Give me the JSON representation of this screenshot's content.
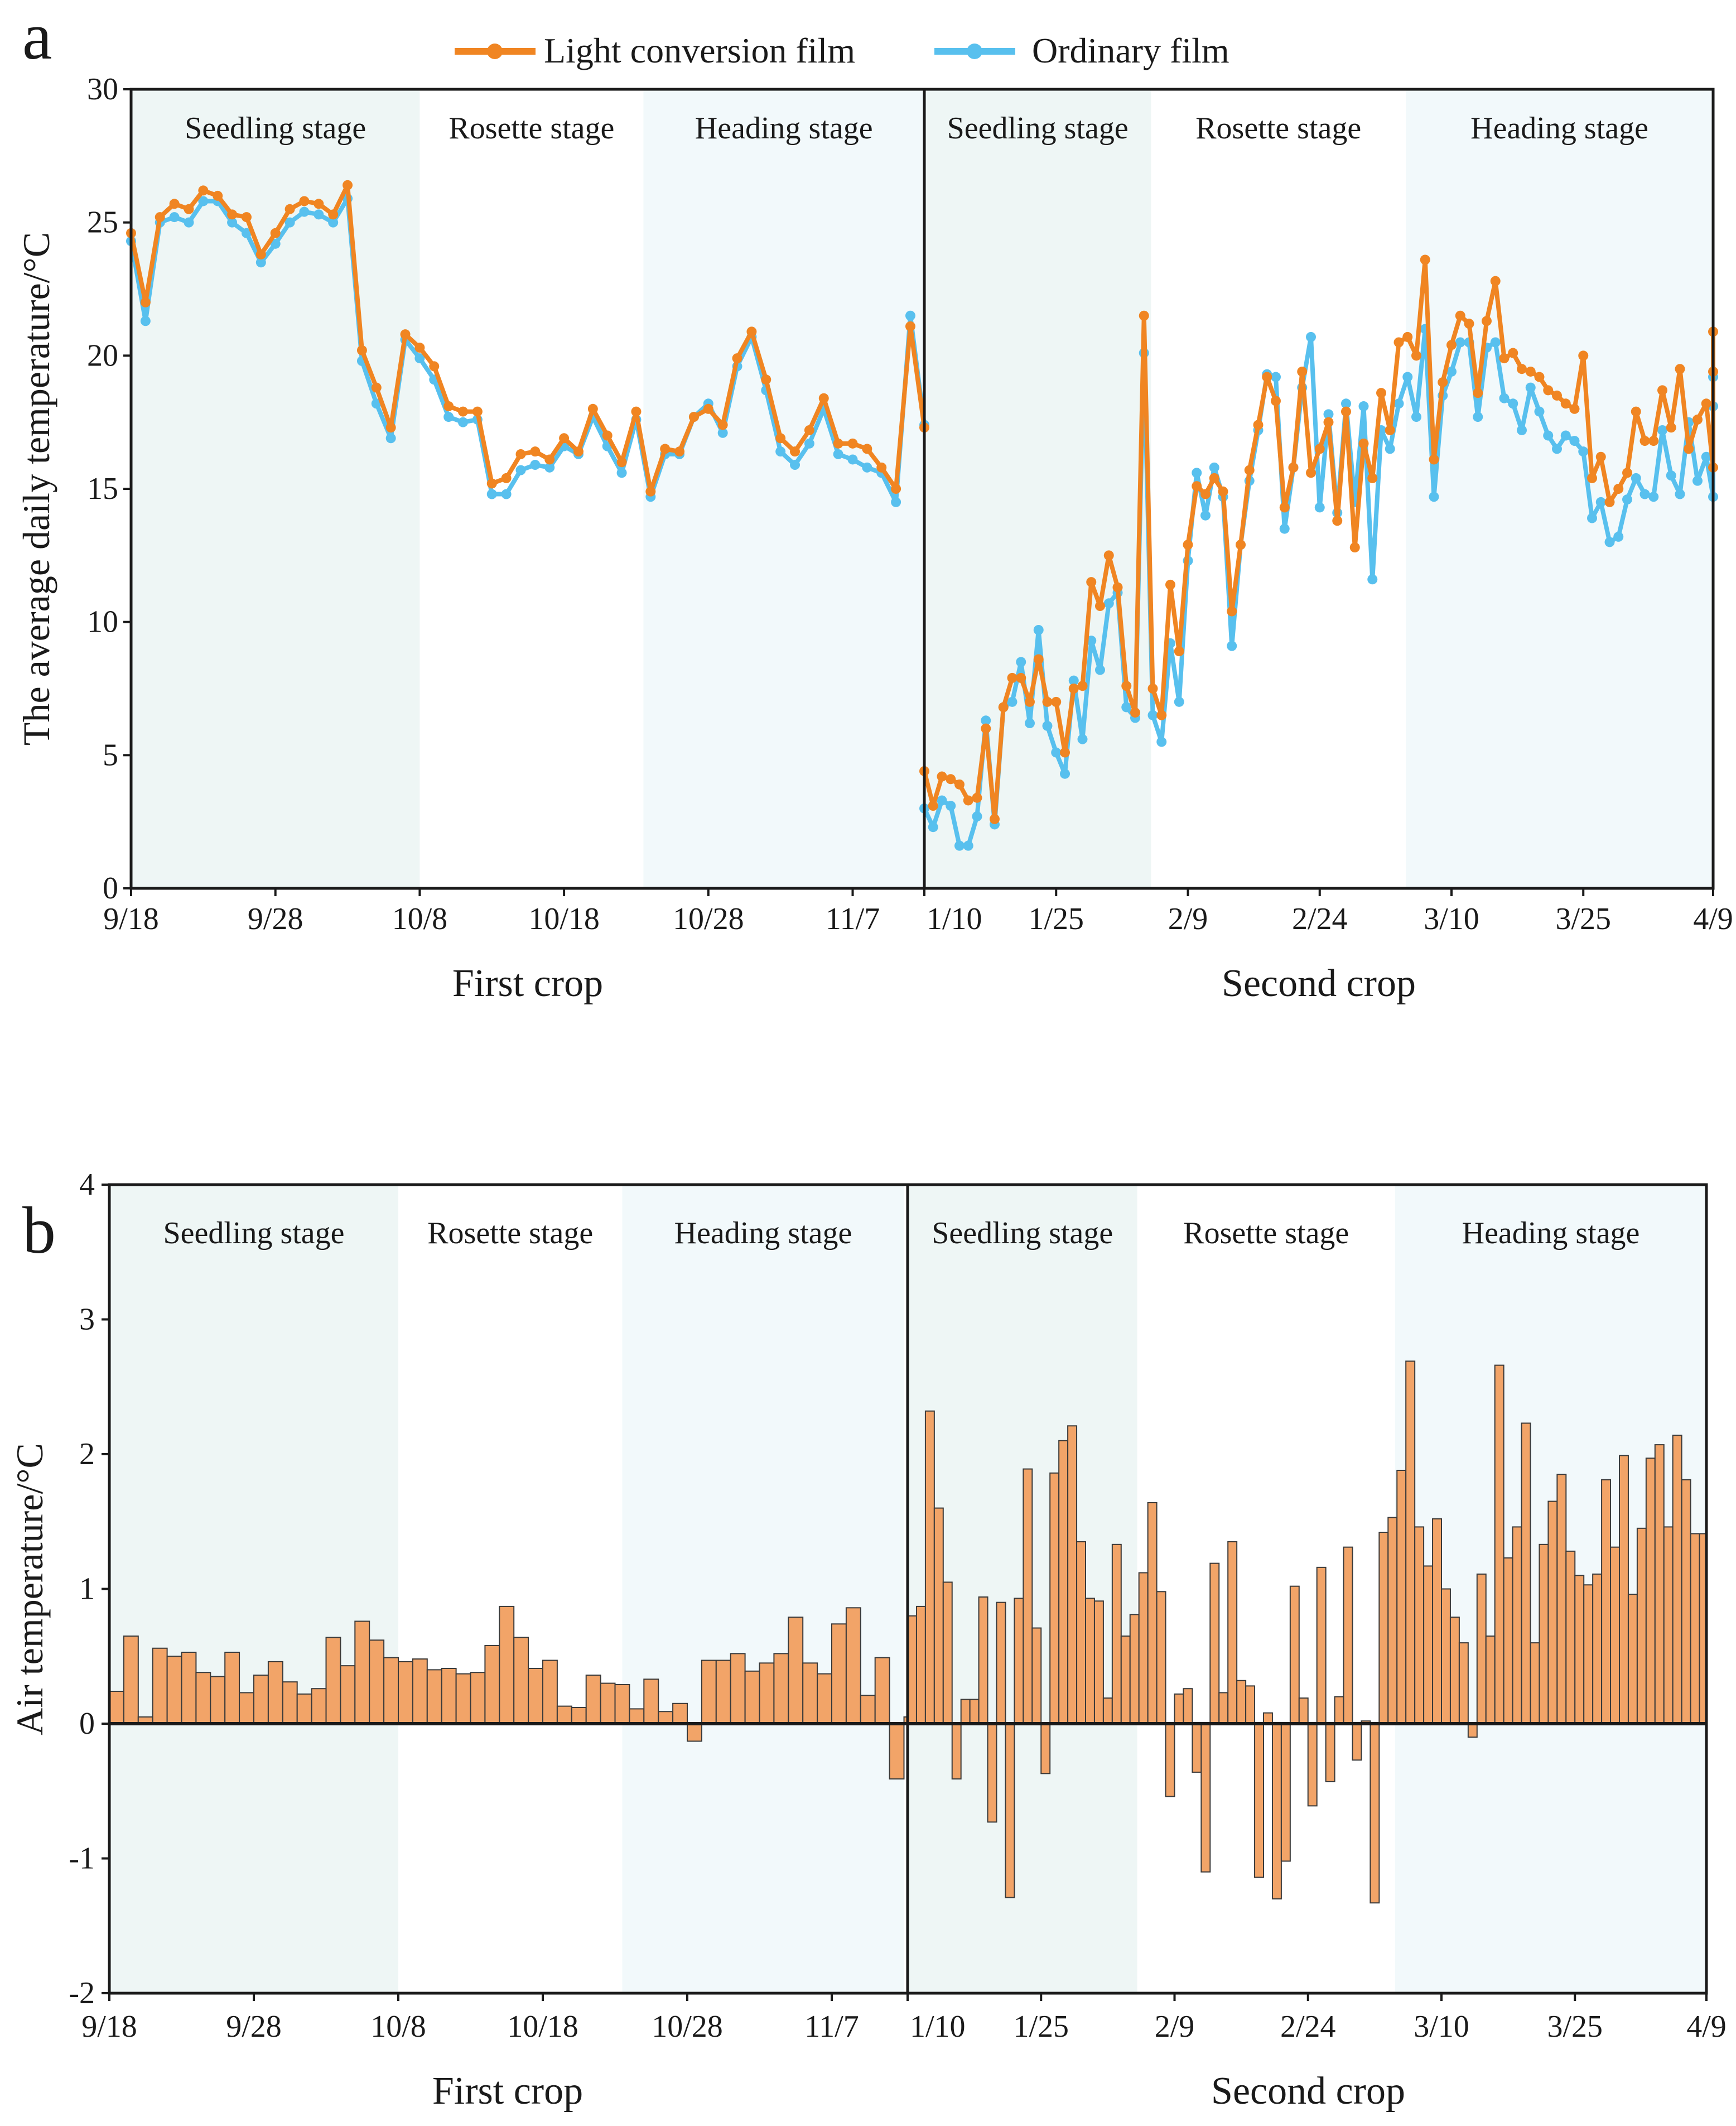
{
  "colors": {
    "lcf": "#F08522",
    "ordinary": "#58C0EE",
    "bar_fill": "#F2A468",
    "bar_edge": "#3a3a3a",
    "seedling_shade": "#EEF6F5",
    "heading_shade": "#F2F9FB",
    "axis": "#1a1a1a"
  },
  "chart_data": [
    {
      "panel_label": "a",
      "type": "line",
      "ylabel": "The average daily temperature/°C",
      "ylim": [
        0,
        30
      ],
      "yticks": [
        "0",
        "5",
        "10",
        "15",
        "20",
        "25",
        "30"
      ],
      "grid": false,
      "legend_position": "top-center",
      "legend": [
        "Light conversion film",
        "Ordinary film"
      ],
      "crops": [
        {
          "name": "First crop",
          "day_count": 55,
          "xticks": [
            {
              "day": 0,
              "label": "9/18"
            },
            {
              "day": 10,
              "label": "9/28"
            },
            {
              "day": 20,
              "label": "10/8"
            },
            {
              "day": 30,
              "label": "10/18"
            },
            {
              "day": 40,
              "label": "10/28"
            },
            {
              "day": 50,
              "label": "11/7"
            }
          ],
          "stages": [
            {
              "label": "Seedling stage",
              "start": 0,
              "end": 20,
              "shade": "seedling_shade"
            },
            {
              "label": "Rosette stage",
              "start": 20,
              "end": 35.5,
              "shade": null
            },
            {
              "label": "Heading stage",
              "start": 35.5,
              "end": 55,
              "shade": "heading_shade"
            }
          ],
          "series": [
            {
              "name": "Light conversion film",
              "color": "lcf",
              "values": [
                24.6,
                22.0,
                25.2,
                25.7,
                25.5,
                26.2,
                26.0,
                25.3,
                25.2,
                23.8,
                24.6,
                25.5,
                25.8,
                25.7,
                25.3,
                26.4,
                20.2,
                18.8,
                17.3,
                20.8,
                20.3,
                19.6,
                18.1,
                17.9,
                17.9,
                15.2,
                15.4,
                16.3,
                16.4,
                16.1,
                16.9,
                16.4,
                18.0,
                17.0,
                16.0,
                17.9,
                14.9,
                16.5,
                16.4,
                17.7,
                18.0,
                17.4,
                19.9,
                20.9,
                19.1,
                16.9,
                16.4,
                17.2,
                18.4,
                16.7,
                16.7,
                16.5,
                15.8,
                15.0,
                21.1,
                17.3
              ]
            },
            {
              "name": "Ordinary film",
              "color": "ordinary",
              "values": [
                24.3,
                21.3,
                25.0,
                25.2,
                25.0,
                25.8,
                25.8,
                25.0,
                24.6,
                23.5,
                24.2,
                25.0,
                25.4,
                25.3,
                25.0,
                25.9,
                19.8,
                18.2,
                16.9,
                20.6,
                19.9,
                19.1,
                17.7,
                17.5,
                17.6,
                14.8,
                14.8,
                15.7,
                15.9,
                15.8,
                16.6,
                16.3,
                17.7,
                16.6,
                15.6,
                17.6,
                14.7,
                16.3,
                16.3,
                17.7,
                18.2,
                17.1,
                19.6,
                20.7,
                18.7,
                16.4,
                15.9,
                16.7,
                18.0,
                16.3,
                16.1,
                15.8,
                15.6,
                14.5,
                21.5,
                17.4
              ]
            }
          ]
        },
        {
          "name": "Second crop",
          "day_count": 89,
          "xticks": [
            {
              "day": 0,
              "label": "1/10"
            },
            {
              "day": 15,
              "label": "1/25"
            },
            {
              "day": 30,
              "label": "2/9"
            },
            {
              "day": 45,
              "label": "2/24"
            },
            {
              "day": 60,
              "label": "3/10"
            },
            {
              "day": 75,
              "label": "3/25"
            },
            {
              "day": 90,
              "label": "4/9"
            }
          ],
          "stages": [
            {
              "label": "Seedling stage",
              "start": 0,
              "end": 25.8,
              "shade": "seedling_shade"
            },
            {
              "label": "Rosette stage",
              "start": 25.8,
              "end": 54.8,
              "shade": null
            },
            {
              "label": "Heading stage",
              "start": 54.8,
              "end": 90,
              "shade": "heading_shade"
            }
          ],
          "series": [
            {
              "name": "Light conversion film",
              "color": "lcf",
              "values": [
                4.4,
                3.1,
                4.2,
                4.1,
                3.9,
                3.3,
                3.4,
                6.0,
                2.6,
                6.8,
                7.9,
                7.9,
                7.0,
                8.6,
                7.0,
                7.0,
                5.1,
                7.5,
                7.6,
                11.5,
                10.6,
                12.5,
                11.3,
                7.6,
                6.6,
                21.5,
                7.5,
                6.5,
                11.4,
                8.9,
                12.9,
                15.1,
                14.8,
                15.4,
                14.9,
                10.4,
                12.9,
                15.7,
                17.4,
                19.2,
                18.3,
                14.3,
                15.8,
                19.4,
                15.6,
                16.5,
                17.5,
                13.8,
                17.9,
                12.8,
                16.7,
                15.4,
                18.6,
                17.2,
                20.5,
                20.7,
                20.0,
                23.6,
                16.1,
                19.0,
                20.4,
                21.5,
                21.2,
                18.6,
                21.3,
                22.8,
                19.9,
                20.1,
                19.5,
                19.4,
                19.2,
                18.7,
                18.5,
                18.2,
                18.0,
                20.0,
                15.4,
                16.2,
                14.5,
                15.0,
                15.6,
                17.9,
                16.8,
                16.8,
                18.7,
                17.3,
                19.5,
                16.5,
                17.6,
                18.2,
                15.8,
                20.9,
                19.4
              ]
            },
            {
              "name": "Ordinary film",
              "color": "ordinary",
              "values": [
                3.0,
                2.3,
                3.3,
                3.1,
                1.6,
                1.6,
                2.7,
                6.3,
                2.4,
                6.8,
                7.0,
                8.5,
                6.2,
                9.7,
                6.1,
                5.1,
                4.3,
                7.8,
                5.6,
                9.3,
                8.2,
                10.7,
                11.1,
                6.8,
                6.4,
                20.1,
                6.5,
                5.5,
                9.2,
                7.0,
                12.3,
                15.6,
                14.0,
                15.8,
                14.7,
                9.1,
                12.9,
                15.3,
                17.2,
                19.3,
                19.2,
                13.5,
                15.8,
                18.8,
                20.7,
                14.3,
                17.8,
                14.1,
                18.2,
                14.5,
                18.1,
                11.6,
                17.2,
                16.5,
                18.2,
                19.2,
                17.7,
                21.0,
                14.7,
                18.5,
                19.4,
                20.5,
                20.5,
                17.7,
                20.3,
                20.5,
                18.4,
                18.2,
                17.2,
                18.8,
                17.9,
                17.0,
                16.5,
                17.0,
                16.8,
                16.4,
                13.9,
                14.5,
                13.0,
                13.2,
                14.6,
                15.4,
                14.8,
                14.7,
                17.2,
                15.5,
                14.8,
                17.5,
                15.3,
                16.2,
                14.7,
                19.2,
                18.1
              ]
            }
          ]
        }
      ]
    },
    {
      "panel_label": "b",
      "type": "bar",
      "ylabel": "Air temperature/°C",
      "ylim": [
        -2,
        4
      ],
      "yticks": [
        "-2",
        "-1",
        "0",
        "1",
        "2",
        "3",
        "4"
      ],
      "grid": false,
      "crops": [
        {
          "name": "First crop",
          "day_count": 55,
          "xticks": [
            {
              "day": 0,
              "label": "9/18"
            },
            {
              "day": 10,
              "label": "9/28"
            },
            {
              "day": 20,
              "label": "10/8"
            },
            {
              "day": 30,
              "label": "10/18"
            },
            {
              "day": 40,
              "label": "10/28"
            },
            {
              "day": 50,
              "label": "11/7"
            }
          ],
          "stages": [
            {
              "label": "Seedling stage",
              "start": 0,
              "end": 20,
              "shade": "seedling_shade"
            },
            {
              "label": "Rosette stage",
              "start": 20,
              "end": 35.5,
              "shade": null
            },
            {
              "label": "Heading stage",
              "start": 35.5,
              "end": 55,
              "shade": "heading_shade"
            }
          ],
          "series": [
            {
              "name": "",
              "values": [
                0.24,
                0.65,
                0.05,
                0.56,
                0.5,
                0.53,
                0.38,
                0.35,
                0.53,
                0.23,
                0.36,
                0.46,
                0.31,
                0.22,
                0.26,
                0.64,
                0.43,
                0.76,
                0.62,
                0.49,
                0.46,
                0.48,
                0.4,
                0.41,
                0.37,
                0.38,
                0.58,
                0.87,
                0.64,
                0.41,
                0.47,
                0.13,
                0.12,
                0.36,
                0.3,
                0.29,
                0.11,
                0.33,
                0.09,
                0.15,
                -0.13,
                0.47,
                0.47,
                0.52,
                0.39,
                0.45,
                0.52,
                0.79,
                0.45,
                0.37,
                0.74,
                0.86,
                0.21,
                0.49,
                -0.41,
                0.05
              ]
            }
          ]
        },
        {
          "name": "Second crop",
          "day_count": 89,
          "xticks": [
            {
              "day": 0,
              "label": "1/10"
            },
            {
              "day": 15,
              "label": "1/25"
            },
            {
              "day": 30,
              "label": "2/9"
            },
            {
              "day": 45,
              "label": "2/24"
            },
            {
              "day": 60,
              "label": "3/10"
            },
            {
              "day": 75,
              "label": "3/25"
            },
            {
              "day": 90,
              "label": "4/9"
            }
          ],
          "stages": [
            {
              "label": "Seedling stage",
              "start": 0,
              "end": 25.8,
              "shade": "seedling_shade"
            },
            {
              "label": "Rosette stage",
              "start": 25.8,
              "end": 54.8,
              "shade": null
            },
            {
              "label": "Heading stage",
              "start": 54.8,
              "end": 90,
              "shade": "heading_shade"
            }
          ],
          "series": [
            {
              "name": "",
              "values": [
                0.8,
                0.87,
                2.32,
                1.6,
                1.05,
                -0.41,
                0.18,
                0.18,
                0.94,
                -0.73,
                0.9,
                -1.29,
                0.93,
                1.89,
                0.71,
                -0.37,
                1.86,
                2.1,
                2.21,
                1.35,
                0.93,
                0.91,
                0.19,
                1.33,
                0.65,
                0.81,
                1.12,
                1.64,
                0.98,
                -0.54,
                0.22,
                0.26,
                -0.36,
                -1.1,
                1.19,
                0.23,
                1.35,
                0.32,
                0.28,
                -1.14,
                0.08,
                -1.3,
                -1.02,
                1.02,
                0.19,
                -0.61,
                1.16,
                -0.43,
                0.2,
                1.31,
                -0.27,
                0.02,
                -1.33,
                1.42,
                1.53,
                1.88,
                2.69,
                1.46,
                1.17,
                1.52,
                1.0,
                0.79,
                0.6,
                -0.1,
                1.11,
                0.65,
                2.66,
                1.23,
                1.46,
                2.23,
                0.6,
                1.33,
                1.65,
                1.85,
                1.28,
                1.1,
                1.03,
                1.11,
                1.81,
                1.31,
                1.99,
                0.96,
                1.45,
                1.97,
                2.07,
                1.46,
                2.14,
                1.81,
                1.41,
                1.41
              ]
            }
          ]
        }
      ]
    }
  ]
}
